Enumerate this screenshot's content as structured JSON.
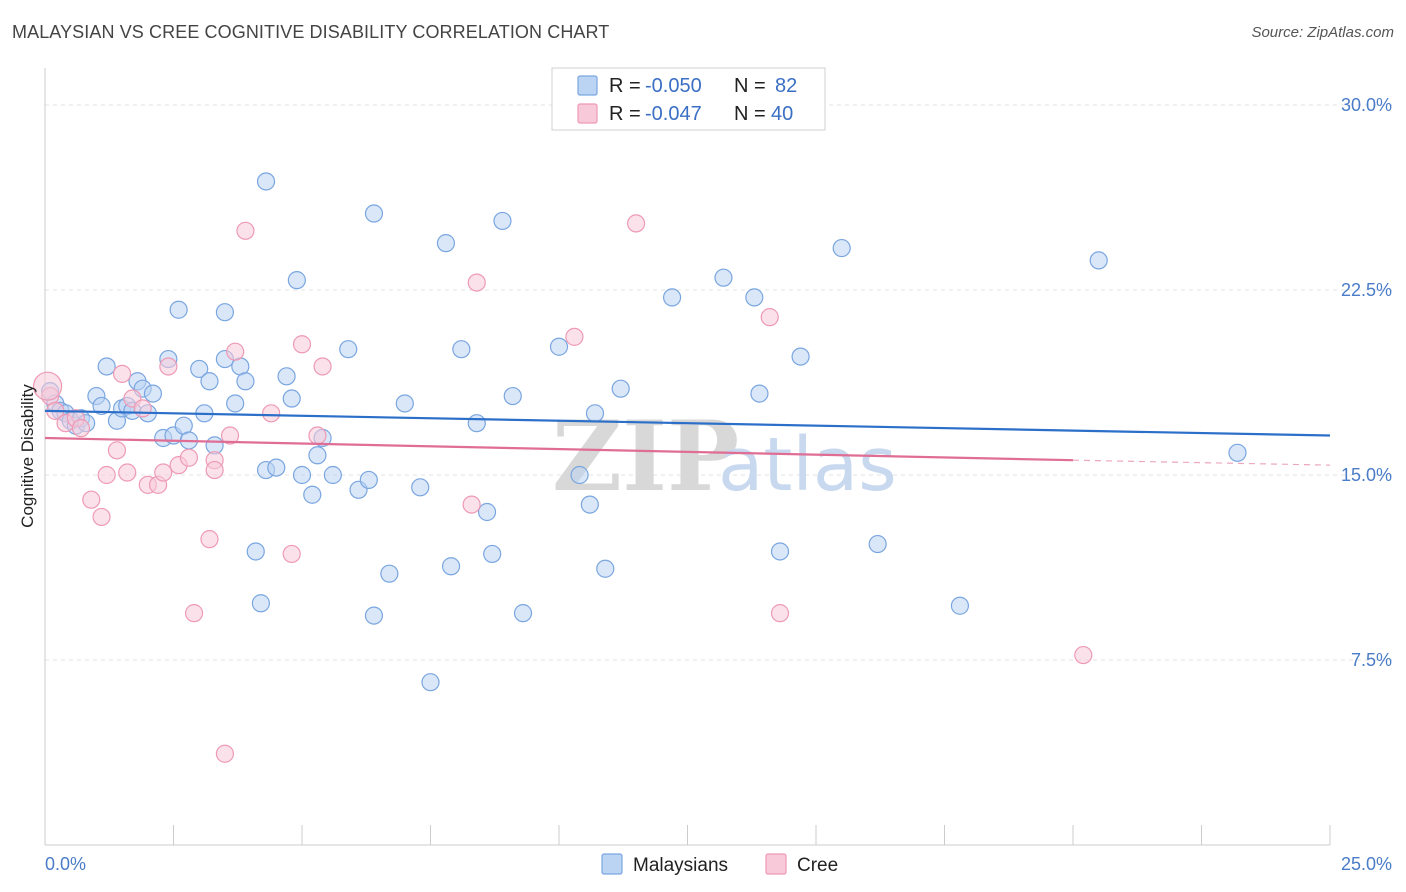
{
  "title": "MALAYSIAN VS CREE COGNITIVE DISABILITY CORRELATION CHART",
  "source": "Source: ZipAtlas.com",
  "chart_data": {
    "type": "scatter",
    "ylabel": "Cognitive Disability",
    "xlim": [
      0,
      25
    ],
    "ylim": [
      0,
      31.5
    ],
    "x_tick_labels": [
      "0.0%",
      "25.0%"
    ],
    "y_ticks": [
      7.5,
      15.0,
      22.5,
      30.0
    ],
    "y_tick_labels": [
      "7.5%",
      "15.0%",
      "22.5%",
      "30.0%"
    ],
    "watermark": [
      "ZIP",
      "atlas"
    ],
    "legend": [
      {
        "name": "Malaysians",
        "r_label": "R =",
        "r": "-0.050",
        "n_label": "N =",
        "n": "82",
        "color": "#7aa6e0",
        "fill": "#bcd4f4"
      },
      {
        "name": "Cree",
        "r_label": "R =",
        "r": "-0.047",
        "n_label": "N =",
        "n": "40",
        "color": "#ee9ab5",
        "fill": "#f8cad9"
      }
    ],
    "series": [
      {
        "name": "Malaysians",
        "color": "#7aa6e0",
        "trend": {
          "x0": 0,
          "y0": 17.6,
          "x1": 25,
          "y1": 16.6,
          "color": "#2b6fc9"
        },
        "points": [
          [
            0.1,
            18.4
          ],
          [
            0.2,
            17.9
          ],
          [
            0.3,
            17.6
          ],
          [
            0.4,
            17.5
          ],
          [
            0.5,
            17.2
          ],
          [
            0.6,
            17.0
          ],
          [
            0.7,
            17.3
          ],
          [
            0.8,
            17.1
          ],
          [
            1.0,
            18.2
          ],
          [
            1.1,
            17.8
          ],
          [
            1.2,
            19.4
          ],
          [
            1.4,
            17.2
          ],
          [
            1.5,
            17.7
          ],
          [
            1.6,
            17.8
          ],
          [
            1.7,
            17.6
          ],
          [
            1.8,
            18.8
          ],
          [
            1.9,
            18.5
          ],
          [
            2.0,
            17.5
          ],
          [
            2.1,
            18.3
          ],
          [
            2.3,
            16.5
          ],
          [
            2.4,
            19.7
          ],
          [
            2.5,
            16.6
          ],
          [
            2.6,
            21.7
          ],
          [
            2.7,
            17.0
          ],
          [
            2.8,
            16.4
          ],
          [
            3.0,
            19.3
          ],
          [
            3.1,
            17.5
          ],
          [
            3.2,
            18.8
          ],
          [
            3.3,
            16.2
          ],
          [
            3.5,
            19.7
          ],
          [
            3.5,
            21.6
          ],
          [
            3.7,
            17.9
          ],
          [
            3.8,
            19.4
          ],
          [
            3.9,
            18.8
          ],
          [
            4.1,
            11.9
          ],
          [
            4.2,
            9.8
          ],
          [
            4.3,
            26.9
          ],
          [
            4.3,
            15.2
          ],
          [
            4.5,
            15.3
          ],
          [
            4.7,
            19.0
          ],
          [
            4.8,
            18.1
          ],
          [
            4.9,
            22.9
          ],
          [
            5.0,
            15.0
          ],
          [
            5.2,
            14.2
          ],
          [
            5.3,
            15.8
          ],
          [
            5.4,
            16.5
          ],
          [
            5.6,
            15.0
          ],
          [
            5.9,
            20.1
          ],
          [
            6.1,
            14.4
          ],
          [
            6.3,
            14.8
          ],
          [
            6.4,
            9.3
          ],
          [
            6.4,
            25.6
          ],
          [
            6.7,
            11.0
          ],
          [
            7.0,
            17.9
          ],
          [
            7.3,
            14.5
          ],
          [
            7.5,
            6.6
          ],
          [
            7.8,
            24.4
          ],
          [
            7.9,
            11.3
          ],
          [
            8.1,
            20.1
          ],
          [
            8.4,
            17.1
          ],
          [
            8.6,
            13.5
          ],
          [
            8.7,
            11.8
          ],
          [
            8.9,
            25.3
          ],
          [
            9.1,
            18.2
          ],
          [
            9.3,
            9.4
          ],
          [
            10.0,
            20.2
          ],
          [
            10.4,
            15.0
          ],
          [
            10.6,
            13.8
          ],
          [
            10.7,
            17.5
          ],
          [
            10.9,
            11.2
          ],
          [
            11.2,
            18.5
          ],
          [
            12.2,
            22.2
          ],
          [
            13.2,
            23.0
          ],
          [
            13.8,
            22.2
          ],
          [
            13.9,
            18.3
          ],
          [
            14.3,
            11.9
          ],
          [
            14.7,
            19.8
          ],
          [
            15.5,
            24.2
          ],
          [
            16.2,
            12.2
          ],
          [
            17.8,
            9.7
          ],
          [
            20.5,
            23.7
          ],
          [
            23.2,
            15.9
          ]
        ]
      },
      {
        "name": "Cree",
        "color": "#ee9ab5",
        "trend": {
          "x0": 0,
          "y0": 16.5,
          "x1": 20,
          "y1": 15.6,
          "dash_to": 25,
          "dash_y": 15.4,
          "color": "#e06d94"
        },
        "points": [
          [
            0.1,
            18.2
          ],
          [
            0.2,
            17.6
          ],
          [
            0.4,
            17.1
          ],
          [
            0.6,
            17.3
          ],
          [
            0.7,
            16.9
          ],
          [
            0.9,
            14.0
          ],
          [
            1.1,
            13.3
          ],
          [
            1.2,
            15.0
          ],
          [
            1.4,
            16.0
          ],
          [
            1.5,
            19.1
          ],
          [
            1.6,
            15.1
          ],
          [
            1.7,
            18.1
          ],
          [
            1.9,
            17.7
          ],
          [
            2.0,
            14.6
          ],
          [
            2.2,
            14.6
          ],
          [
            2.3,
            15.1
          ],
          [
            2.4,
            19.4
          ],
          [
            2.6,
            15.4
          ],
          [
            2.8,
            15.7
          ],
          [
            2.9,
            9.4
          ],
          [
            3.2,
            12.4
          ],
          [
            3.3,
            15.6
          ],
          [
            3.3,
            15.2
          ],
          [
            3.5,
            3.7
          ],
          [
            3.6,
            16.6
          ],
          [
            3.7,
            20.0
          ],
          [
            3.9,
            24.9
          ],
          [
            4.4,
            17.5
          ],
          [
            4.8,
            11.8
          ],
          [
            5.0,
            20.3
          ],
          [
            5.3,
            16.6
          ],
          [
            5.4,
            19.4
          ],
          [
            8.3,
            13.8
          ],
          [
            8.4,
            22.8
          ],
          [
            10.3,
            20.6
          ],
          [
            11.5,
            25.2
          ],
          [
            14.1,
            21.4
          ],
          [
            14.3,
            9.4
          ],
          [
            20.2,
            7.7
          ],
          [
            0.05,
            18.6
          ]
        ]
      }
    ]
  },
  "bottom_legend": {
    "malaysians": "Malaysians",
    "cree": "Cree"
  }
}
